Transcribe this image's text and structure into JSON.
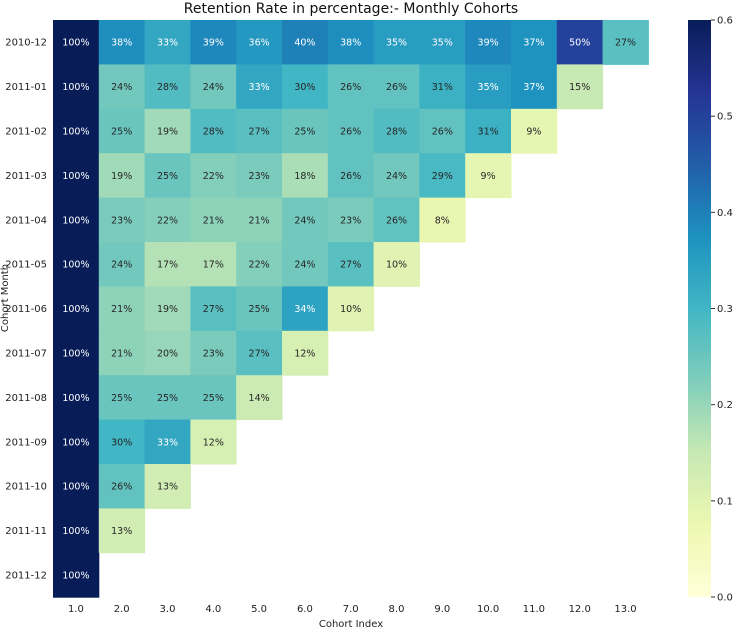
{
  "chart_data": {
    "type": "heatmap",
    "title": "Retention Rate in percentage:- Monthly Cohorts",
    "xlabel": "Cohort Index",
    "ylabel": "Cohort Month",
    "x_ticks": [
      "1.0",
      "2.0",
      "3.0",
      "4.0",
      "5.0",
      "6.0",
      "7.0",
      "8.0",
      "9.0",
      "10.0",
      "11.0",
      "12.0",
      "13.0"
    ],
    "y_ticks": [
      "2010-12",
      "2011-01",
      "2011-02",
      "2011-03",
      "2011-04",
      "2011-05",
      "2011-06",
      "2011-07",
      "2011-08",
      "2011-09",
      "2011-10",
      "2011-11",
      "2011-12"
    ],
    "colormap": "YlGnBu",
    "vmin": 0.0,
    "vmax": 0.6,
    "colorbar_ticks": [
      "0.0",
      "0.1",
      "0.2",
      "0.3",
      "0.4",
      "0.5",
      "0.6"
    ],
    "values": [
      [
        1.0,
        0.38,
        0.33,
        0.39,
        0.36,
        0.4,
        0.38,
        0.35,
        0.35,
        0.39,
        0.37,
        0.5,
        0.27
      ],
      [
        1.0,
        0.24,
        0.28,
        0.24,
        0.33,
        0.3,
        0.26,
        0.26,
        0.31,
        0.35,
        0.37,
        0.15,
        null
      ],
      [
        1.0,
        0.25,
        0.19,
        0.28,
        0.27,
        0.25,
        0.26,
        0.28,
        0.26,
        0.31,
        0.09,
        null,
        null
      ],
      [
        1.0,
        0.19,
        0.25,
        0.22,
        0.23,
        0.18,
        0.26,
        0.24,
        0.29,
        0.09,
        null,
        null,
        null
      ],
      [
        1.0,
        0.23,
        0.22,
        0.21,
        0.21,
        0.24,
        0.23,
        0.26,
        0.08,
        null,
        null,
        null,
        null
      ],
      [
        1.0,
        0.24,
        0.17,
        0.17,
        0.22,
        0.24,
        0.27,
        0.1,
        null,
        null,
        null,
        null,
        null
      ],
      [
        1.0,
        0.21,
        0.19,
        0.27,
        0.25,
        0.34,
        0.1,
        null,
        null,
        null,
        null,
        null,
        null
      ],
      [
        1.0,
        0.21,
        0.2,
        0.23,
        0.27,
        0.12,
        null,
        null,
        null,
        null,
        null,
        null,
        null
      ],
      [
        1.0,
        0.25,
        0.25,
        0.25,
        0.14,
        null,
        null,
        null,
        null,
        null,
        null,
        null,
        null
      ],
      [
        1.0,
        0.3,
        0.33,
        0.12,
        null,
        null,
        null,
        null,
        null,
        null,
        null,
        null,
        null
      ],
      [
        1.0,
        0.26,
        0.13,
        null,
        null,
        null,
        null,
        null,
        null,
        null,
        null,
        null,
        null
      ],
      [
        1.0,
        0.13,
        null,
        null,
        null,
        null,
        null,
        null,
        null,
        null,
        null,
        null,
        null
      ],
      [
        1.0,
        null,
        null,
        null,
        null,
        null,
        null,
        null,
        null,
        null,
        null,
        null,
        null
      ]
    ],
    "labels": [
      [
        "100%",
        "38%",
        "33%",
        "39%",
        "36%",
        "40%",
        "38%",
        "35%",
        "35%",
        "39%",
        "37%",
        "50%",
        "27%"
      ],
      [
        "100%",
        "24%",
        "28%",
        "24%",
        "33%",
        "30%",
        "26%",
        "26%",
        "31%",
        "35%",
        "37%",
        "15%",
        null
      ],
      [
        "100%",
        "25%",
        "19%",
        "28%",
        "27%",
        "25%",
        "26%",
        "28%",
        "26%",
        "31%",
        "9%",
        null,
        null
      ],
      [
        "100%",
        "19%",
        "25%",
        "22%",
        "23%",
        "18%",
        "26%",
        "24%",
        "29%",
        "9%",
        null,
        null,
        null
      ],
      [
        "100%",
        "23%",
        "22%",
        "21%",
        "21%",
        "24%",
        "23%",
        "26%",
        "8%",
        null,
        null,
        null,
        null
      ],
      [
        "100%",
        "24%",
        "17%",
        "17%",
        "22%",
        "24%",
        "27%",
        "10%",
        null,
        null,
        null,
        null,
        null
      ],
      [
        "100%",
        "21%",
        "19%",
        "27%",
        "25%",
        "34%",
        "10%",
        null,
        null,
        null,
        null,
        null,
        null
      ],
      [
        "100%",
        "21%",
        "20%",
        "23%",
        "27%",
        "12%",
        null,
        null,
        null,
        null,
        null,
        null,
        null
      ],
      [
        "100%",
        "25%",
        "25%",
        "25%",
        "14%",
        null,
        null,
        null,
        null,
        null,
        null,
        null,
        null
      ],
      [
        "100%",
        "30%",
        "33%",
        "12%",
        null,
        null,
        null,
        null,
        null,
        null,
        null,
        null,
        null
      ],
      [
        "100%",
        "26%",
        "13%",
        null,
        null,
        null,
        null,
        null,
        null,
        null,
        null,
        null,
        null
      ],
      [
        "100%",
        "13%",
        null,
        null,
        null,
        null,
        null,
        null,
        null,
        null,
        null,
        null,
        null
      ],
      [
        "100%",
        null,
        null,
        null,
        null,
        null,
        null,
        null,
        null,
        null,
        null,
        null,
        null
      ]
    ]
  }
}
